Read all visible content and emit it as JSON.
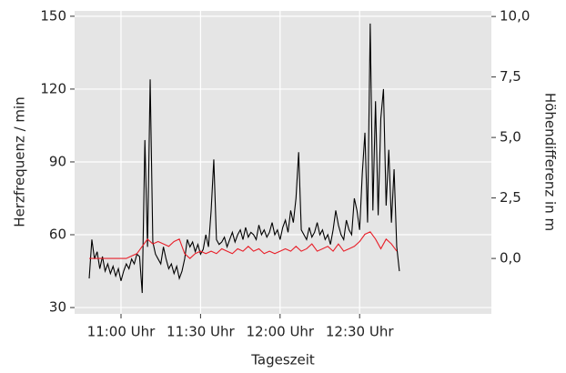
{
  "chart_data": {
    "type": "line",
    "x_label": "Tageszeit",
    "y_label": "Herzfrequenz / min",
    "y2_label": "Höhendifferenz in m",
    "xlim": [
      642.5,
      799.7
    ],
    "xticks": [
      {
        "value": 660,
        "label": "11:00 Uhr"
      },
      {
        "value": 690,
        "label": "11:30 Uhr"
      },
      {
        "value": 720,
        "label": "12:00 Uhr"
      },
      {
        "value": 750,
        "label": "12:30 Uhr"
      }
    ],
    "ylim": [
      27.4,
      152.2
    ],
    "yticks": [
      30,
      60,
      90,
      120,
      150
    ],
    "y2lim": [
      -2.29,
      10.23
    ],
    "y2ticks": [
      {
        "value": 0,
        "label": "0,0"
      },
      {
        "value": 2.5,
        "label": "2,5"
      },
      {
        "value": 5,
        "label": "5,0"
      },
      {
        "value": 7.5,
        "label": "7,5"
      },
      {
        "value": 10,
        "label": "10,0"
      }
    ],
    "grid": true,
    "background": "#e5e5e5",
    "series": [
      {
        "color": "#000000",
        "x": [
          648,
          649,
          650,
          651,
          652,
          653,
          654,
          655,
          656,
          657,
          658,
          659,
          660,
          661,
          662,
          663,
          664,
          665,
          666,
          667,
          668,
          669,
          670,
          671,
          672,
          673,
          674,
          675,
          676,
          677,
          678,
          679,
          680,
          681,
          682,
          683,
          684,
          685,
          686,
          687,
          688,
          689,
          690,
          691,
          692,
          693,
          694,
          695,
          696,
          697,
          698,
          699,
          700,
          701,
          702,
          703,
          704,
          705,
          706,
          707,
          708,
          709,
          710,
          711,
          712,
          713,
          714,
          715,
          716,
          717,
          718,
          719,
          720,
          721,
          722,
          723,
          724,
          725,
          726,
          727,
          728,
          729,
          730,
          731,
          732,
          733,
          734,
          735,
          736,
          737,
          738,
          739,
          740,
          741,
          742,
          743,
          744,
          745,
          746,
          747,
          748,
          749,
          750,
          751,
          752,
          753,
          754,
          755,
          756,
          757,
          758,
          759,
          760,
          761,
          762,
          763,
          764,
          765
        ],
        "values": [
          42,
          58,
          50,
          53,
          46,
          51,
          45,
          48,
          44,
          47,
          43,
          46,
          41,
          45,
          48,
          46,
          50,
          48,
          52,
          51,
          36,
          99,
          55,
          124,
          57,
          52,
          50,
          48,
          55,
          50,
          46,
          48,
          44,
          47,
          42,
          45,
          50,
          58,
          55,
          57,
          53,
          56,
          52,
          54,
          60,
          55,
          70,
          91,
          58,
          56,
          57,
          59,
          55,
          58,
          61,
          57,
          60,
          62,
          58,
          63,
          59,
          61,
          60,
          58,
          64,
          60,
          62,
          59,
          61,
          65,
          60,
          62,
          58,
          63,
          66,
          61,
          70,
          65,
          75,
          94,
          62,
          60,
          58,
          63,
          59,
          61,
          65,
          60,
          62,
          58,
          60,
          56,
          62,
          70,
          64,
          60,
          58,
          66,
          62,
          60,
          75,
          70,
          62,
          85,
          102,
          65,
          147,
          70,
          115,
          68,
          108,
          120,
          72,
          95,
          65,
          87,
          55,
          45
        ]
      },
      {
        "color": "#e8202a",
        "axis": "y2",
        "x": [
          648,
          650,
          652,
          654,
          656,
          658,
          660,
          662,
          664,
          666,
          668,
          670,
          672,
          674,
          676,
          678,
          680,
          682,
          684,
          686,
          688,
          690,
          692,
          694,
          696,
          698,
          700,
          702,
          704,
          706,
          708,
          710,
          712,
          714,
          716,
          718,
          720,
          722,
          724,
          726,
          728,
          730,
          732,
          734,
          736,
          738,
          740,
          742,
          744,
          746,
          748,
          750,
          752,
          754,
          756,
          758,
          760,
          762,
          764
        ],
        "values": [
          0,
          0,
          0,
          0,
          0,
          0,
          0,
          0,
          0.1,
          0.2,
          0.5,
          0.8,
          0.6,
          0.7,
          0.6,
          0.5,
          0.7,
          0.8,
          0.2,
          0,
          0.2,
          0.3,
          0.2,
          0.3,
          0.2,
          0.4,
          0.3,
          0.2,
          0.4,
          0.3,
          0.5,
          0.3,
          0.4,
          0.2,
          0.3,
          0.2,
          0.3,
          0.4,
          0.3,
          0.5,
          0.3,
          0.4,
          0.6,
          0.3,
          0.4,
          0.5,
          0.3,
          0.6,
          0.3,
          0.4,
          0.5,
          0.7,
          1.0,
          1.1,
          0.8,
          0.4,
          0.8,
          0.6,
          0.3
        ]
      }
    ]
  }
}
